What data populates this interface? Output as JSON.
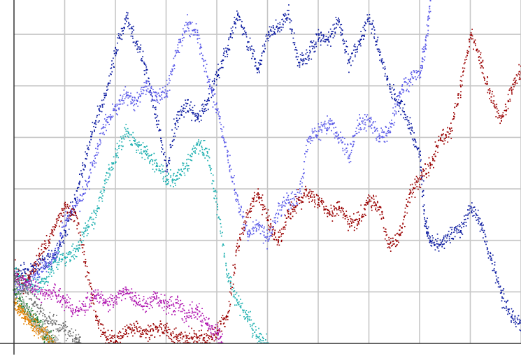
{
  "chart_data": {
    "type": "scatter",
    "title": "",
    "xlabel": "",
    "ylabel": "",
    "grid": true,
    "legend": "none",
    "xlim": [
      0,
      100
    ],
    "ylim": [
      0,
      100
    ],
    "x_gridlines": [
      10,
      20,
      30,
      40,
      50,
      60,
      70,
      80,
      90,
      100
    ],
    "y_gridlines": [
      15,
      30,
      45,
      60,
      75,
      90
    ],
    "series": [
      {
        "color": "#0b1aa0",
        "values": [
          [
            0,
            19
          ],
          [
            2,
            21
          ],
          [
            4,
            22
          ],
          [
            6,
            24
          ],
          [
            8,
            26
          ],
          [
            10,
            33
          ],
          [
            12,
            42
          ],
          [
            14,
            54
          ],
          [
            16,
            65
          ],
          [
            18,
            73
          ],
          [
            20,
            85
          ],
          [
            22,
            95
          ],
          [
            24,
            88
          ],
          [
            26,
            80
          ],
          [
            28,
            65
          ],
          [
            30,
            52
          ],
          [
            32,
            65
          ],
          [
            34,
            70
          ],
          [
            36,
            66
          ],
          [
            38,
            70
          ],
          [
            40,
            78
          ],
          [
            42,
            86
          ],
          [
            44,
            96
          ],
          [
            46,
            88
          ],
          [
            48,
            80
          ],
          [
            50,
            90
          ],
          [
            52,
            92
          ],
          [
            54,
            96
          ],
          [
            56,
            82
          ],
          [
            58,
            84
          ],
          [
            60,
            90
          ],
          [
            62,
            88
          ],
          [
            64,
            94
          ],
          [
            66,
            82
          ],
          [
            68,
            88
          ],
          [
            70,
            95
          ],
          [
            72,
            85
          ],
          [
            74,
            75
          ],
          [
            76,
            70
          ],
          [
            78,
            63
          ],
          [
            80,
            55
          ],
          [
            81,
            35
          ],
          [
            82,
            30
          ],
          [
            84,
            29
          ],
          [
            86,
            32
          ],
          [
            88,
            33
          ],
          [
            90,
            40
          ],
          [
            92,
            35
          ],
          [
            94,
            25
          ],
          [
            96,
            15
          ],
          [
            98,
            8
          ],
          [
            100,
            6
          ]
        ]
      },
      {
        "color": "#5a5ae8",
        "values": [
          [
            0,
            15
          ],
          [
            2,
            17
          ],
          [
            4,
            20
          ],
          [
            6,
            22
          ],
          [
            8,
            25
          ],
          [
            10,
            36
          ],
          [
            12,
            40
          ],
          [
            14,
            45
          ],
          [
            16,
            55
          ],
          [
            18,
            65
          ],
          [
            20,
            68
          ],
          [
            22,
            73
          ],
          [
            24,
            70
          ],
          [
            26,
            76
          ],
          [
            28,
            72
          ],
          [
            30,
            73
          ],
          [
            32,
            85
          ],
          [
            34,
            93
          ],
          [
            36,
            90
          ],
          [
            38,
            78
          ],
          [
            40,
            68
          ],
          [
            42,
            55
          ],
          [
            44,
            42
          ],
          [
            46,
            32
          ],
          [
            48,
            35
          ],
          [
            50,
            30
          ],
          [
            52,
            38
          ],
          [
            54,
            42
          ],
          [
            56,
            42
          ],
          [
            58,
            60
          ],
          [
            60,
            62
          ],
          [
            62,
            65
          ],
          [
            64,
            60
          ],
          [
            66,
            55
          ],
          [
            68,
            64
          ],
          [
            70,
            65
          ],
          [
            72,
            60
          ],
          [
            74,
            62
          ],
          [
            76,
            73
          ],
          [
            78,
            77
          ],
          [
            80,
            79
          ],
          [
            81,
            86
          ],
          [
            82,
            100
          ]
        ]
      },
      {
        "color": "#9a0000",
        "values": [
          [
            0,
            22
          ],
          [
            2,
            17
          ],
          [
            4,
            23
          ],
          [
            6,
            28
          ],
          [
            8,
            34
          ],
          [
            10,
            40
          ],
          [
            12,
            38
          ],
          [
            14,
            24
          ],
          [
            16,
            8
          ],
          [
            18,
            2
          ],
          [
            20,
            1
          ],
          [
            22,
            4
          ],
          [
            24,
            5
          ],
          [
            26,
            3
          ],
          [
            28,
            5
          ],
          [
            30,
            4
          ],
          [
            32,
            2
          ],
          [
            34,
            1
          ],
          [
            36,
            2
          ],
          [
            38,
            1
          ],
          [
            40,
            4
          ],
          [
            42,
            8
          ],
          [
            44,
            28
          ],
          [
            46,
            38
          ],
          [
            48,
            44
          ],
          [
            50,
            36
          ],
          [
            52,
            30
          ],
          [
            54,
            38
          ],
          [
            56,
            42
          ],
          [
            58,
            44
          ],
          [
            60,
            42
          ],
          [
            62,
            38
          ],
          [
            64,
            40
          ],
          [
            66,
            35
          ],
          [
            68,
            36
          ],
          [
            70,
            42
          ],
          [
            72,
            40
          ],
          [
            74,
            28
          ],
          [
            76,
            32
          ],
          [
            78,
            44
          ],
          [
            80,
            48
          ],
          [
            82,
            52
          ],
          [
            84,
            60
          ],
          [
            86,
            62
          ],
          [
            88,
            75
          ],
          [
            90,
            90
          ],
          [
            92,
            82
          ],
          [
            94,
            72
          ],
          [
            96,
            65
          ],
          [
            98,
            74
          ],
          [
            100,
            80
          ]
        ]
      },
      {
        "color": "#1fb0b0",
        "values": [
          [
            0,
            22
          ],
          [
            2,
            18
          ],
          [
            4,
            17
          ],
          [
            6,
            18
          ],
          [
            8,
            24
          ],
          [
            10,
            25
          ],
          [
            12,
            27
          ],
          [
            14,
            33
          ],
          [
            16,
            38
          ],
          [
            18,
            48
          ],
          [
            20,
            55
          ],
          [
            22,
            62
          ],
          [
            24,
            58
          ],
          [
            26,
            56
          ],
          [
            28,
            52
          ],
          [
            30,
            48
          ],
          [
            32,
            49
          ],
          [
            34,
            52
          ],
          [
            36,
            58
          ],
          [
            38,
            56
          ],
          [
            40,
            40
          ],
          [
            42,
            20
          ],
          [
            44,
            12
          ],
          [
            46,
            8
          ],
          [
            48,
            2
          ],
          [
            50,
            0
          ]
        ]
      },
      {
        "color": "#b016b0",
        "values": [
          [
            0,
            20
          ],
          [
            2,
            18
          ],
          [
            4,
            16
          ],
          [
            6,
            14
          ],
          [
            8,
            15
          ],
          [
            10,
            12
          ],
          [
            12,
            10
          ],
          [
            14,
            11
          ],
          [
            16,
            14
          ],
          [
            18,
            12
          ],
          [
            20,
            13
          ],
          [
            22,
            16
          ],
          [
            24,
            12
          ],
          [
            26,
            11
          ],
          [
            28,
            14
          ],
          [
            30,
            11
          ],
          [
            32,
            12
          ],
          [
            34,
            8
          ],
          [
            36,
            10
          ],
          [
            38,
            6
          ],
          [
            40,
            3
          ],
          [
            41,
            0
          ]
        ]
      },
      {
        "color": "#1d7a30",
        "values": [
          [
            0,
            16
          ],
          [
            1,
            13
          ],
          [
            2,
            11
          ],
          [
            3,
            9
          ],
          [
            4,
            7
          ],
          [
            5,
            5
          ],
          [
            6,
            3
          ],
          [
            7,
            2
          ],
          [
            8,
            0
          ]
        ]
      },
      {
        "color": "#e38000",
        "values": [
          [
            0,
            12
          ],
          [
            1,
            10
          ],
          [
            2,
            8
          ],
          [
            3,
            7
          ],
          [
            4,
            5
          ],
          [
            5,
            4
          ],
          [
            6,
            3
          ],
          [
            7,
            1
          ],
          [
            8,
            0
          ]
        ]
      },
      {
        "color": "#6f6f6f",
        "values": [
          [
            0,
            19
          ],
          [
            2,
            16
          ],
          [
            4,
            12
          ],
          [
            6,
            8
          ],
          [
            8,
            6
          ],
          [
            10,
            4
          ],
          [
            12,
            2
          ],
          [
            13,
            0
          ]
        ]
      },
      {
        "color": "#b8b8b8",
        "values": [
          [
            0,
            17
          ],
          [
            2,
            11
          ],
          [
            4,
            6
          ],
          [
            6,
            3
          ],
          [
            8,
            1
          ],
          [
            9,
            0
          ]
        ]
      }
    ]
  }
}
